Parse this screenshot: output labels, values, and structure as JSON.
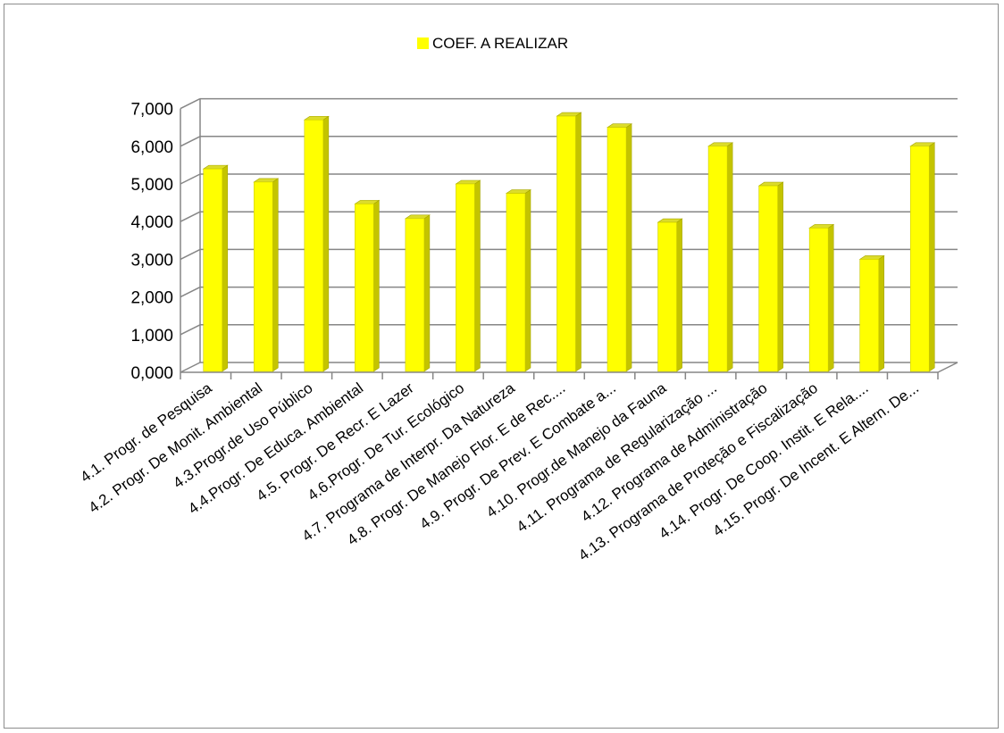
{
  "chart_data": {
    "type": "bar",
    "categories": [
      "4.1. Progr. de Pesquisa",
      "4.2. Progr. De Monit. Ambiental",
      "4.3.Progr.de Uso Público",
      "4.4.Progr. De Educa. Ambiental",
      "4.5. Progr. De Recr. E Lazer",
      "4.6.Progr. De Tur. Ecológico",
      "4.7. Programa de Interpr. Da Natureza",
      "4.8. Progr. De Manejo Flor. E de Rec....",
      "4.9. Progr. De Prev. E Combate a...",
      "4.10. Progr.de Manejo da Fauna",
      "4.11. Programa de Regularização ...",
      "4.12. Programa de Administração",
      "4.13. Programa de Proteção e Fiscalização",
      "4.14. Progr. De Coop. Instit. E Rela....",
      "4.15. Progr. De Incent. E Altern. De..."
    ],
    "series": [
      {
        "name": "COEF. A REALIZAR",
        "values": [
          5.4,
          5.05,
          6.7,
          4.47,
          4.08,
          5.0,
          4.75,
          6.8,
          6.5,
          3.98,
          6.0,
          4.95,
          3.83,
          3.0,
          6.0
        ]
      }
    ],
    "ylim": [
      0,
      7
    ],
    "yticks": [
      "0,000",
      "1,000",
      "2,000",
      "3,000",
      "4,000",
      "5,000",
      "6,000",
      "7,000"
    ],
    "xlabel": "",
    "ylabel": "",
    "grid": true,
    "legend": "top-center",
    "colors": {
      "bar_front": "#ffff00",
      "bar_side": "#c4c400",
      "bar_top": "#dcdc2a",
      "grid": "#868686"
    }
  }
}
